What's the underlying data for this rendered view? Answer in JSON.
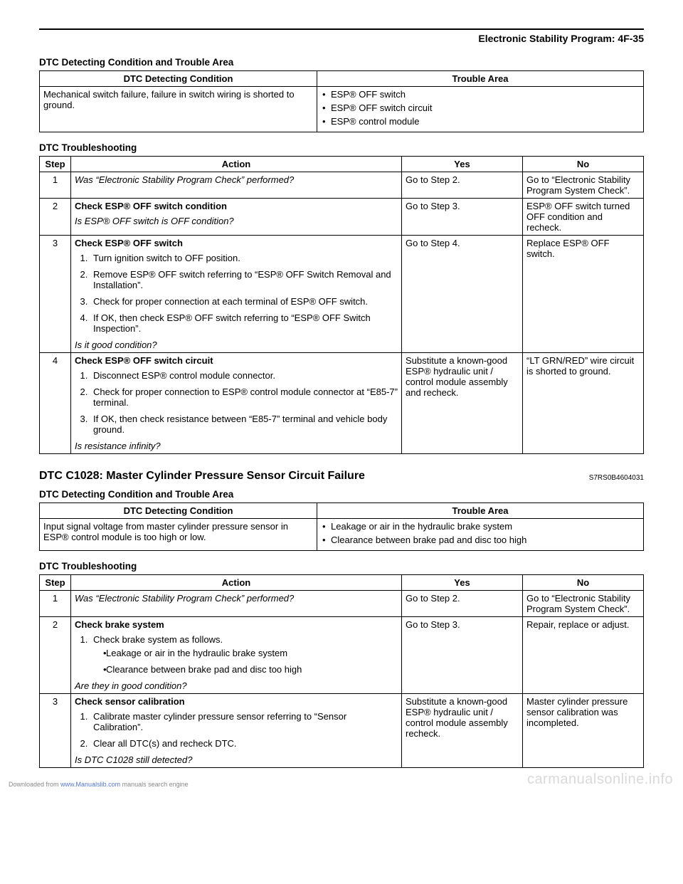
{
  "pageHeader": "Electronic Stability Program:    4F-35",
  "section1": {
    "condHeading": "DTC Detecting Condition and Trouble Area",
    "condTable": {
      "headers": {
        "cond": "DTC Detecting Condition",
        "trouble": "Trouble Area"
      },
      "condText": "Mechanical switch failure, failure in switch wiring is shorted to ground.",
      "troubleItems": [
        "ESP® OFF switch",
        "ESP® OFF switch circuit",
        "ESP® control module"
      ]
    },
    "tsHeading": "DTC Troubleshooting",
    "tsTable": {
      "headers": {
        "step": "Step",
        "action": "Action",
        "yes": "Yes",
        "no": "No"
      },
      "rows": [
        {
          "step": "1",
          "actionItalic": "Was “Electronic Stability Program Check” performed?",
          "yes": "Go to Step 2.",
          "no": "Go to “Electronic Stability Program System Check”."
        },
        {
          "step": "2",
          "actionBold": "Check ESP® OFF switch condition",
          "actionItalic": "Is ESP® OFF switch is OFF condition?",
          "yes": "Go to Step 3.",
          "no": "ESP® OFF switch turned OFF condition and recheck."
        },
        {
          "step": "3",
          "actionBold": "Check ESP® OFF switch",
          "list": [
            "Turn ignition switch to OFF position.",
            "Remove ESP® OFF switch referring to “ESP® OFF Switch Removal and Installation”.",
            "Check for proper connection at each terminal of ESP® OFF switch.",
            "If OK, then check ESP® OFF switch referring to “ESP® OFF Switch Inspection”."
          ],
          "actionItalic": "Is it good condition?",
          "yes": "Go to Step 4.",
          "no": "Replace ESP® OFF switch."
        },
        {
          "step": "4",
          "actionBold": "Check ESP® OFF switch circuit",
          "list": [
            "Disconnect ESP® control module connector.",
            "Check for proper connection to ESP® control module connector at “E85-7” terminal.",
            "If OK, then check resistance between “E85-7” terminal and vehicle body ground."
          ],
          "actionItalic": "Is resistance infinity?",
          "yes": "Substitute a known-good ESP® hydraulic unit / control module assembly and recheck.",
          "no": "“LT GRN/RED” wire circuit is shorted to ground."
        }
      ]
    }
  },
  "dtcTitle": "DTC C1028: Master Cylinder Pressure Sensor Circuit Failure",
  "refCode": "S7RS0B4604031",
  "section2": {
    "condHeading": "DTC Detecting Condition and Trouble Area",
    "condTable": {
      "headers": {
        "cond": "DTC Detecting Condition",
        "trouble": "Trouble Area"
      },
      "condText": "Input signal voltage from master cylinder pressure sensor in ESP® control module is too high or low.",
      "troubleItems": [
        "Leakage or air in the hydraulic brake system",
        "Clearance between brake pad and disc too high"
      ]
    },
    "tsHeading": "DTC Troubleshooting",
    "tsTable": {
      "headers": {
        "step": "Step",
        "action": "Action",
        "yes": "Yes",
        "no": "No"
      },
      "rows": [
        {
          "step": "1",
          "actionItalic": "Was “Electronic Stability Program Check” performed?",
          "yes": "Go to Step 2.",
          "no": "Go to “Electronic Stability Program System Check”."
        },
        {
          "step": "2",
          "actionBold": "Check brake system",
          "pre": "Check brake system as follows.",
          "subBullets": [
            "Leakage or air in the hydraulic brake system",
            "Clearance between brake pad and disc too high"
          ],
          "actionItalic": "Are they in good condition?",
          "yes": "Go to Step 3.",
          "no": "Repair, replace or adjust."
        },
        {
          "step": "3",
          "actionBold": "Check sensor calibration",
          "list": [
            "Calibrate master cylinder pressure sensor referring to “Sensor Calibration”.",
            "Clear all DTC(s) and recheck DTC."
          ],
          "actionItalic": "Is DTC C1028 still detected?",
          "yes": "Substitute a known-good ESP® hydraulic unit / control module assembly recheck.",
          "no": "Master cylinder pressure sensor calibration was incompleted."
        }
      ]
    }
  },
  "footer": {
    "prefix": "Downloaded from ",
    "link": "www.Manualslib.com",
    "suffix": " manuals search engine"
  },
  "watermark": "carmanualsonline.info"
}
